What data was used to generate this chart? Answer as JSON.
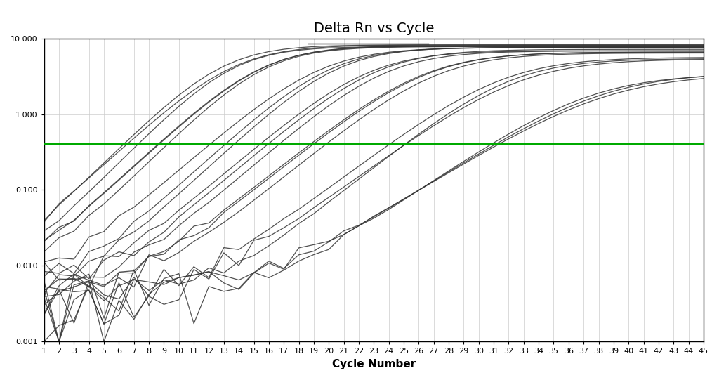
{
  "title": "Delta Rn vs Cycle",
  "xlabel": "Cycle Number",
  "ylabel": "",
  "ylim_log": [
    0.001,
    10.0
  ],
  "xlim": [
    1,
    45
  ],
  "threshold_y": 0.4,
  "threshold_color": "#00aa00",
  "threshold_linewidth": 1.5,
  "background_color": "#ffffff",
  "grid_color": "#cccccc",
  "curve_color": "#333333",
  "curve_linewidth": 0.9,
  "title_fontsize": 14,
  "axis_label_fontsize": 11,
  "tick_fontsize": 8,
  "n_cycles": 45,
  "groups": [
    {
      "midpoint": 13,
      "plateau": 8.0,
      "steepness": 0.45,
      "baseline": 0.007,
      "noise_scale": 0.003,
      "n": 3
    },
    {
      "midpoint": 16,
      "plateau": 8.0,
      "steepness": 0.45,
      "baseline": 0.006,
      "noise_scale": 0.003,
      "n": 3
    },
    {
      "midpoint": 20,
      "plateau": 7.5,
      "steepness": 0.42,
      "baseline": 0.005,
      "noise_scale": 0.002,
      "n": 3
    },
    {
      "midpoint": 23,
      "plateau": 7.0,
      "steepness": 0.4,
      "baseline": 0.005,
      "noise_scale": 0.002,
      "n": 3
    },
    {
      "midpoint": 27,
      "plateau": 6.5,
      "steepness": 0.38,
      "baseline": 0.004,
      "noise_scale": 0.002,
      "n": 3
    },
    {
      "midpoint": 32,
      "plateau": 5.5,
      "steepness": 0.35,
      "baseline": 0.004,
      "noise_scale": 0.002,
      "n": 3
    },
    {
      "midpoint": 38,
      "plateau": 3.5,
      "steepness": 0.3,
      "baseline": 0.004,
      "noise_scale": 0.002,
      "n": 3
    }
  ]
}
